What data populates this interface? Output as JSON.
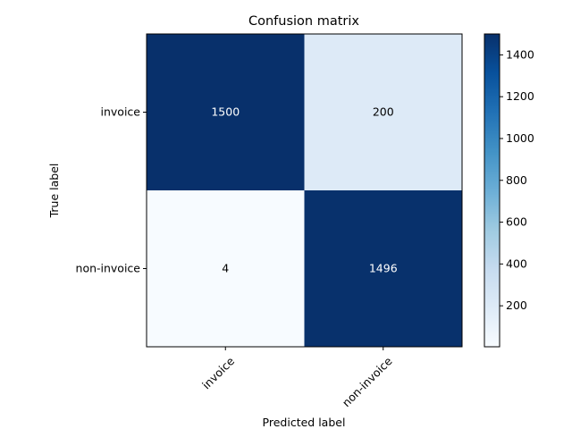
{
  "chart_data": {
    "type": "heatmap",
    "title": "Confusion matrix",
    "xlabel": "Predicted label",
    "ylabel": "True label",
    "x_categories": [
      "invoice",
      "non-invoice"
    ],
    "y_categories": [
      "invoice",
      "non-invoice"
    ],
    "values": [
      [
        1500,
        200
      ],
      [
        4,
        1496
      ]
    ],
    "colormap": "Blues",
    "colorbar": {
      "min": 4,
      "max": 1500,
      "ticks": [
        200,
        400,
        600,
        800,
        1000,
        1200,
        1400
      ]
    },
    "xtick_rotation": 45
  }
}
